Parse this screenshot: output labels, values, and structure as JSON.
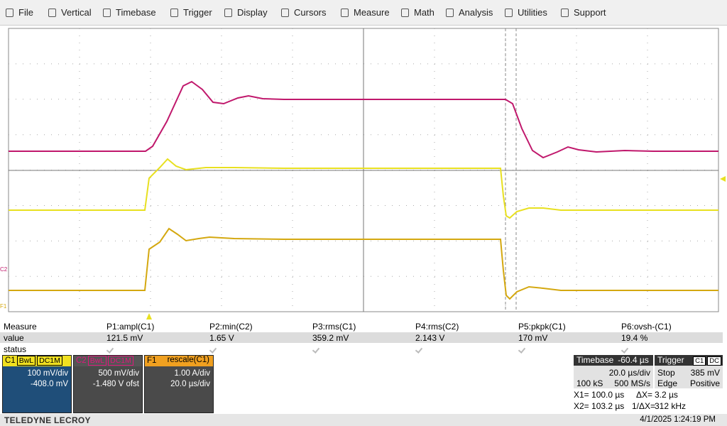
{
  "menu": [
    "File",
    "Vertical",
    "Timebase",
    "Trigger",
    "Display",
    "Cursors",
    "Measure",
    "Math",
    "Analysis",
    "Utilities",
    "Support"
  ],
  "trace_labels": [
    "C2",
    "F1"
  ],
  "measure": {
    "label": "Measure",
    "value_label": "value",
    "status_label": "status",
    "columns": [
      {
        "name": "P1:ampl(C1)",
        "value": "121.5 mV"
      },
      {
        "name": "P2:min(C2)",
        "value": "1.65 V"
      },
      {
        "name": "P3:rms(C1)",
        "value": "359.2 mV"
      },
      {
        "name": "P4:rms(C2)",
        "value": "2.143 V"
      },
      {
        "name": "P5:pkpk(C1)",
        "value": "170 mV"
      },
      {
        "name": "P6:ovsh-(C1)",
        "value": "19.4 %"
      }
    ]
  },
  "channels": [
    {
      "name": "C1",
      "tags": [
        "BwL",
        "DC1M"
      ],
      "lines": [
        "100 mV/div",
        "-408.0 mV"
      ]
    },
    {
      "name": "C2",
      "tags": [
        "BwL",
        "DC1M"
      ],
      "lines": [
        "500 mV/div",
        "-1.480 V ofst"
      ]
    },
    {
      "name": "F1",
      "tags": [
        "rescale(C1)"
      ],
      "lines": [
        "1.00 A/div",
        "20.0 µs/div"
      ]
    }
  ],
  "timebase": {
    "label": "Timebase",
    "delay": "-60.4 µs",
    "rows": [
      [
        "",
        "20.0 µs/div"
      ],
      [
        "100 kS",
        "500 MS/s"
      ]
    ]
  },
  "trigger": {
    "label": "Trigger",
    "tags": [
      "C1",
      "DC"
    ],
    "rows": [
      [
        "Stop",
        "385 mV"
      ],
      [
        "Edge",
        "Positive"
      ]
    ]
  },
  "cursors": [
    [
      "X1= 100.0 µs",
      "ΔX=",
      "3.2 µs"
    ],
    [
      "X2= 103.2 µs",
      "1/ΔX=",
      "312 kHz"
    ]
  ],
  "footer": {
    "brand": "TELEDYNE LECROY",
    "datetime": "4/1/2025 1:24:19 PM"
  }
}
